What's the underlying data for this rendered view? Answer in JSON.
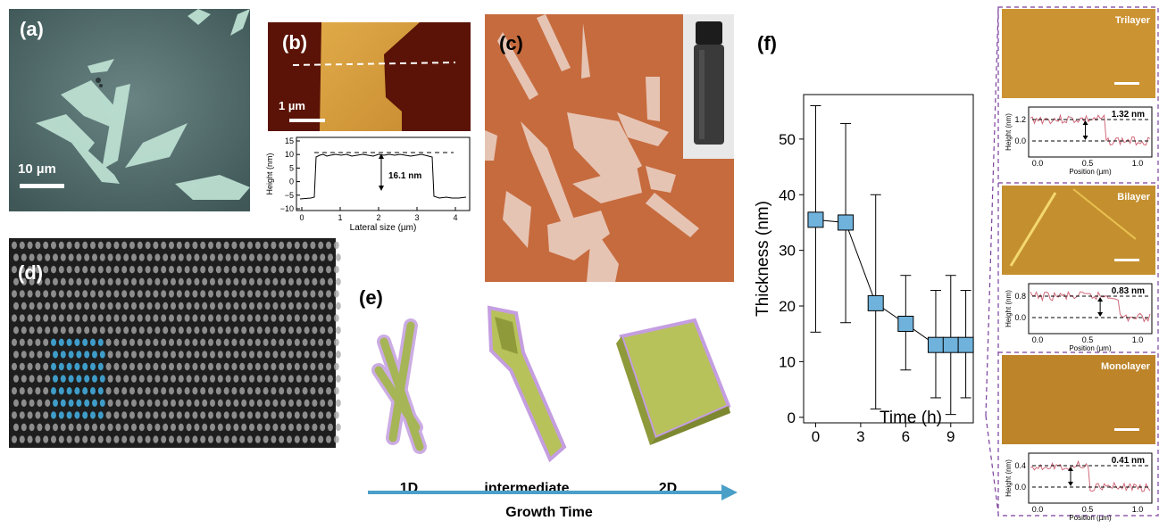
{
  "panel_a": {
    "label": "(a)",
    "scale_bar": "10 µm"
  },
  "panel_b": {
    "label": "(b)",
    "scale_bar": "1 µm",
    "profile": {
      "ylabel": "Height (nm)",
      "xlabel": "Lateral size (µm)",
      "annotation": "16.1 nm",
      "yticks": [
        "15",
        "10",
        "5",
        "0",
        "−5",
        "−10"
      ],
      "xticks": [
        "0",
        "1",
        "2",
        "3",
        "4"
      ]
    }
  },
  "panel_c": {
    "label": "(c)"
  },
  "panel_d": {
    "label": "(d)"
  },
  "panel_e": {
    "label": "(e)",
    "stages": [
      "1D",
      "intermediate",
      "2D"
    ],
    "arrow_label": "Growth Time"
  },
  "panel_f": {
    "label": "(f)"
  },
  "chart_data": [
    {
      "type": "line",
      "xlabel": "Time (h)",
      "ylabel": "Thickness (nm)",
      "xticks": [
        "0",
        "3",
        "6",
        "9"
      ],
      "yticks": [
        "0",
        "10",
        "20",
        "30",
        "40",
        "50"
      ],
      "xlim": [
        -0.8,
        10.5
      ],
      "ylim": [
        -1,
        58
      ],
      "points": [
        {
          "x": 0,
          "y": 35.5,
          "err_low": 15.3,
          "err_high": 56
        },
        {
          "x": 2,
          "y": 35,
          "err_low": 17,
          "err_high": 52.8
        },
        {
          "x": 4,
          "y": 20.5,
          "err_low": 1.5,
          "err_high": 40
        },
        {
          "x": 6,
          "y": 16.8,
          "err_low": 8.5,
          "err_high": 25.5
        },
        {
          "x": 8,
          "y": 13,
          "err_low": 3.5,
          "err_high": 22.8
        },
        {
          "x": 9,
          "y": 13,
          "err_low": 0.5,
          "err_high": 25.5
        },
        {
          "x": 10,
          "y": 13,
          "err_low": 3.5,
          "err_high": 22.8
        }
      ],
      "marker_color": "#6fb2dc"
    },
    {
      "type": "line",
      "panel": "trilayer",
      "xlabel": "Position (µm)",
      "ylabel": "Height (nm)",
      "xticks": [
        "0.0",
        "0.5",
        "1.0"
      ],
      "yticks": [
        "1.2",
        "0.0"
      ],
      "annotation": "1.32 nm",
      "image_label": "Trilayer"
    },
    {
      "type": "line",
      "panel": "bilayer",
      "xlabel": "Position (µm)",
      "ylabel": "Height (nm)",
      "xticks": [
        "0.0",
        "0.5",
        "1.0"
      ],
      "yticks": [
        "0.8",
        "0.0"
      ],
      "annotation": "0.83 nm",
      "image_label": "Bilayer"
    },
    {
      "type": "line",
      "panel": "monolayer",
      "xlabel": "Position (µm)",
      "ylabel": "Height (nm)",
      "xticks": [
        "0.0",
        "0.5",
        "1.0"
      ],
      "yticks": [
        "0.4",
        "0.0"
      ],
      "annotation": "0.41 nm",
      "image_label": "Monolayer"
    }
  ]
}
